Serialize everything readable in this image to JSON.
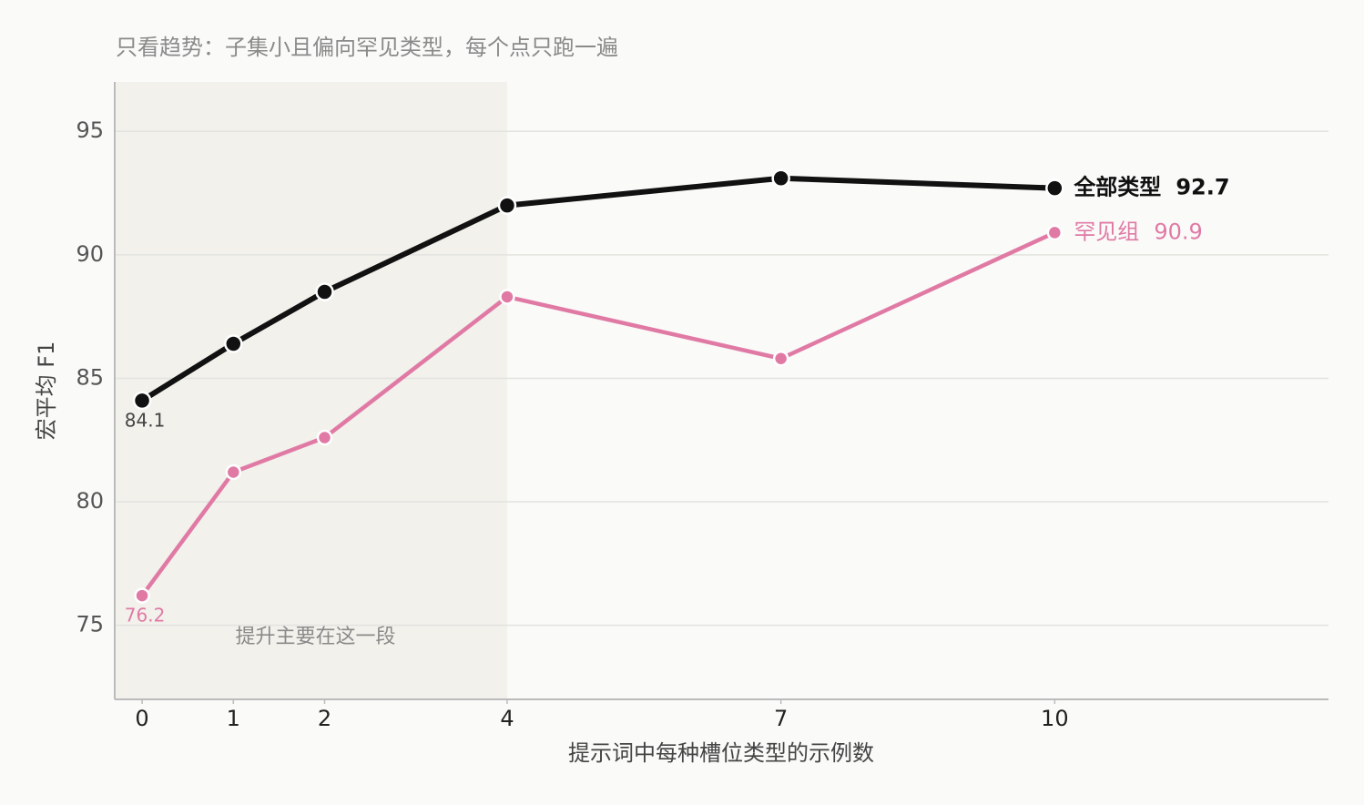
{
  "chart_data": {
    "type": "line",
    "title": "只看趋势：子集小且偏向罕见类型，每个点只跑一遍",
    "x_label": "提示词中每种槽位类型的示例数",
    "y_label": "宏平均 F1",
    "x": [
      0,
      1,
      2,
      4,
      7,
      10
    ],
    "series": [
      {
        "name": "全部类型",
        "color": "#111111",
        "values": [
          84.1,
          86.4,
          88.5,
          92.0,
          93.1,
          92.7
        ]
      },
      {
        "name": "罕见组",
        "color": "#e07aa5",
        "values": [
          76.2,
          81.2,
          82.6,
          88.3,
          85.8,
          90.9
        ]
      }
    ],
    "xlim": [
      -0.3,
      13
    ],
    "ylim": [
      72,
      97
    ],
    "xticks": [
      0,
      1,
      2,
      4,
      7,
      10
    ],
    "yticks": [
      75,
      80,
      85,
      90,
      95
    ],
    "grid": true,
    "highlight": {
      "xmax": 4,
      "label": "提升主要在这一段"
    }
  }
}
